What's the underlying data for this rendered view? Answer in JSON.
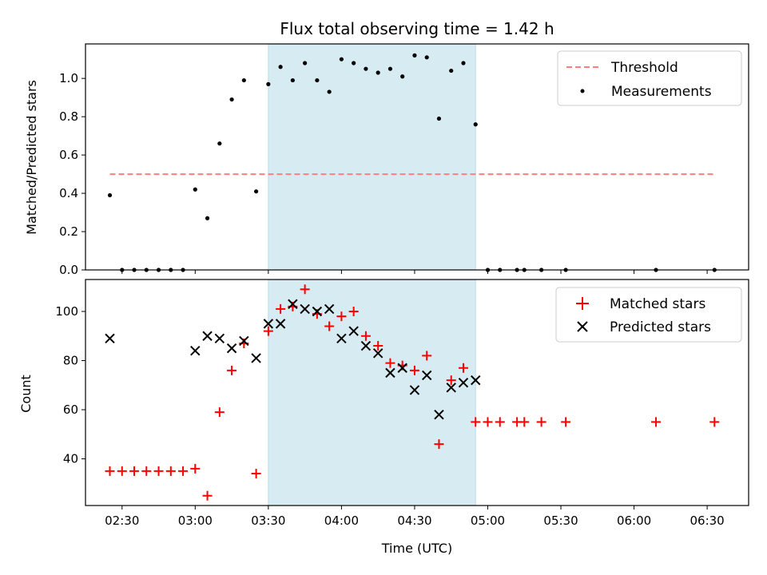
{
  "chart_data": [
    {
      "type": "scatter",
      "title": "Flux total observing time = 1.42 h",
      "xlabel": "",
      "ylabel": "Matched/Predicted stars",
      "xlim": [
        "02:15",
        "06:47"
      ],
      "ylim": [
        0,
        1.18
      ],
      "yticks": [
        0.0,
        0.2,
        0.4,
        0.6,
        0.8,
        1.0
      ],
      "ytick_labels": [
        "0.0",
        "0.2",
        "0.4",
        "0.6",
        "0.8",
        "1.0"
      ],
      "highlight_span": {
        "start": "03:30",
        "end": "04:55",
        "color": "#add8e6"
      },
      "legend": {
        "location": "upper right",
        "entries": [
          "Threshold",
          "Measurements"
        ]
      },
      "series": [
        {
          "name": "Threshold",
          "style": "dashed-line",
          "color": "#ff7f7f",
          "x": [
            "02:25",
            "06:33"
          ],
          "y": [
            0.5,
            0.5
          ]
        },
        {
          "name": "Measurements",
          "style": "dot",
          "color": "#000000",
          "x": [
            "02:25",
            "02:30",
            "02:35",
            "02:40",
            "02:45",
            "02:50",
            "02:55",
            "03:00",
            "03:05",
            "03:10",
            "03:15",
            "03:20",
            "03:25",
            "03:30",
            "03:35",
            "03:40",
            "03:45",
            "03:50",
            "03:55",
            "04:00",
            "04:05",
            "04:10",
            "04:15",
            "04:20",
            "04:25",
            "04:30",
            "04:35",
            "04:40",
            "04:45",
            "04:50",
            "04:55",
            "05:00",
            "05:05",
            "05:12",
            "05:15",
            "05:22",
            "05:32",
            "06:09",
            "06:33"
          ],
          "y": [
            0.39,
            0.0,
            0.0,
            0.0,
            0.0,
            0.0,
            0.0,
            0.42,
            0.27,
            0.66,
            0.89,
            0.99,
            0.41,
            0.97,
            1.06,
            0.99,
            1.08,
            0.99,
            0.93,
            1.1,
            1.08,
            1.05,
            1.03,
            1.05,
            1.01,
            1.12,
            1.11,
            0.79,
            1.04,
            1.08,
            0.76,
            0.0,
            0.0,
            0.0,
            0.0,
            0.0,
            0.0,
            0.0,
            0.0
          ]
        }
      ]
    },
    {
      "type": "scatter",
      "title": "",
      "xlabel": "Time (UTC)",
      "ylabel": "Count",
      "xlim": [
        "02:15",
        "06:47"
      ],
      "ylim": [
        21,
        113
      ],
      "yticks": [
        40,
        60,
        80,
        100
      ],
      "ytick_labels": [
        "40",
        "60",
        "80",
        "100"
      ],
      "xticks": [
        "02:30",
        "03:00",
        "03:30",
        "04:00",
        "04:30",
        "05:00",
        "05:30",
        "06:00",
        "06:30"
      ],
      "xtick_labels": [
        "02:30",
        "03:00",
        "03:30",
        "04:00",
        "04:30",
        "05:00",
        "05:30",
        "06:00",
        "06:30"
      ],
      "highlight_span": {
        "start": "03:30",
        "end": "04:55",
        "color": "#add8e6"
      },
      "legend": {
        "location": "upper right",
        "entries": [
          "Matched stars",
          "Predicted stars"
        ]
      },
      "series": [
        {
          "name": "Matched stars",
          "style": "plus",
          "color": "#ff0000",
          "x": [
            "02:25",
            "02:30",
            "02:35",
            "02:40",
            "02:45",
            "02:50",
            "02:55",
            "03:00",
            "03:05",
            "03:10",
            "03:15",
            "03:20",
            "03:25",
            "03:30",
            "03:35",
            "03:40",
            "03:45",
            "03:50",
            "03:55",
            "04:00",
            "04:05",
            "04:10",
            "04:15",
            "04:20",
            "04:25",
            "04:30",
            "04:35",
            "04:40",
            "04:45",
            "04:50",
            "04:55",
            "05:00",
            "05:05",
            "05:12",
            "05:15",
            "05:22",
            "05:32",
            "06:09",
            "06:33"
          ],
          "y": [
            35,
            35,
            35,
            35,
            35,
            35,
            35,
            36,
            25,
            59,
            76,
            87,
            34,
            92,
            101,
            102,
            109,
            99,
            94,
            98,
            100,
            90,
            86,
            79,
            78,
            76,
            82,
            46,
            72,
            77,
            55,
            55,
            55,
            55,
            55,
            55,
            55,
            55,
            55
          ]
        },
        {
          "name": "Predicted stars",
          "style": "x",
          "color": "#000000",
          "x": [
            "02:25",
            "03:00",
            "03:05",
            "03:10",
            "03:15",
            "03:20",
            "03:25",
            "03:30",
            "03:35",
            "03:40",
            "03:45",
            "03:50",
            "03:55",
            "04:00",
            "04:05",
            "04:10",
            "04:15",
            "04:20",
            "04:25",
            "04:30",
            "04:35",
            "04:40",
            "04:45",
            "04:50",
            "04:55"
          ],
          "y": [
            89,
            84,
            90,
            89,
            85,
            88,
            81,
            95,
            95,
            103,
            101,
            100,
            101,
            89,
            92,
            86,
            83,
            75,
            77,
            68,
            74,
            58,
            69,
            71,
            72
          ]
        }
      ]
    }
  ]
}
